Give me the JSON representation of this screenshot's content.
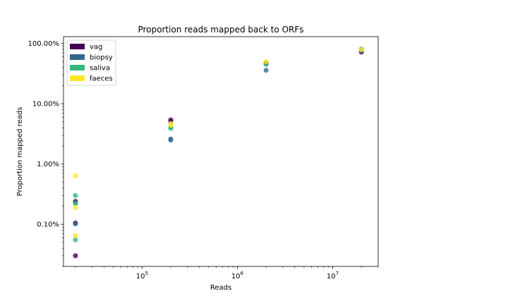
{
  "chart_data": {
    "type": "scatter",
    "title": "Proportion reads mapped back to ORFs",
    "xlabel": "Reads",
    "ylabel": "Proportion mapped reads",
    "xscale": "log",
    "yscale": "log",
    "xlim": [
      15000,
      30000000
    ],
    "ylim": [
      0.0002,
      1.3
    ],
    "grid": false,
    "legend_position": "top-left",
    "x_ticks": [
      {
        "value": 100000,
        "base": "10",
        "exp": "5"
      },
      {
        "value": 1000000,
        "base": "10",
        "exp": "6"
      },
      {
        "value": 10000000,
        "base": "10",
        "exp": "7"
      }
    ],
    "y_ticks": [
      {
        "value": 0.001,
        "label": "0.10%"
      },
      {
        "value": 0.01,
        "label": "1.00%"
      },
      {
        "value": 0.1,
        "label": "10.00%"
      },
      {
        "value": 1.0,
        "label": "100.00%"
      }
    ],
    "series": [
      {
        "name": "vag",
        "color": "#440154",
        "points": [
          {
            "x": 20000,
            "y": 0.0003
          },
          {
            "x": 20000,
            "y": 0.00105
          },
          {
            "x": 20000,
            "y": 0.0024
          },
          {
            "x": 200000,
            "y": 0.054
          },
          {
            "x": 200000,
            "y": 0.051
          },
          {
            "x": 2000000,
            "y": 0.47
          },
          {
            "x": 20000000,
            "y": 0.72
          }
        ]
      },
      {
        "name": "biopsy",
        "color": "#31688e",
        "points": [
          {
            "x": 20000,
            "y": 0.00102
          },
          {
            "x": 20000,
            "y": 0.0023
          },
          {
            "x": 200000,
            "y": 0.026
          },
          {
            "x": 200000,
            "y": 0.025
          },
          {
            "x": 2000000,
            "y": 0.36
          },
          {
            "x": 20000000,
            "y": 0.76
          }
        ]
      },
      {
        "name": "saliva",
        "color": "#35b779",
        "points": [
          {
            "x": 20000,
            "y": 0.00055
          },
          {
            "x": 20000,
            "y": 0.003
          },
          {
            "x": 20000,
            "y": 0.0022
          },
          {
            "x": 200000,
            "y": 0.039
          },
          {
            "x": 200000,
            "y": 0.041
          },
          {
            "x": 2000000,
            "y": 0.45
          },
          {
            "x": 20000000,
            "y": 0.81
          }
        ]
      },
      {
        "name": "faeces",
        "color": "#fde725",
        "points": [
          {
            "x": 20000,
            "y": 0.0064
          },
          {
            "x": 20000,
            "y": 0.0019
          },
          {
            "x": 20000,
            "y": 0.00065
          },
          {
            "x": 200000,
            "y": 0.047
          },
          {
            "x": 200000,
            "y": 0.044
          },
          {
            "x": 2000000,
            "y": 0.5
          },
          {
            "x": 20000000,
            "y": 0.79
          }
        ]
      }
    ]
  }
}
